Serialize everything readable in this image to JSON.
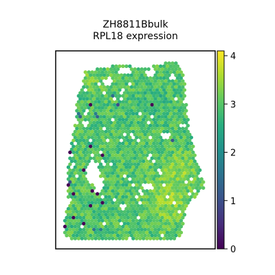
{
  "chart_data": {
    "type": "heatmap",
    "subtype": "spatial-hexbin",
    "title_line1": "ZH8811Bbulk",
    "title_line2": "RPL18 expression",
    "xlabel": "",
    "ylabel": "",
    "x_ticks_visible": false,
    "y_ticks_visible": false,
    "colormap": "viridis",
    "colorbar": {
      "range": [
        0,
        4.1
      ],
      "ticks": [
        0,
        1,
        2,
        3,
        4
      ],
      "tick_labels": [
        "0",
        "1",
        "2",
        "3",
        "4"
      ]
    },
    "value_distribution": {
      "typical_range": [
        2.4,
        3.7
      ],
      "dominant_value": 3.0,
      "outlier_low_value": 0.0
    }
  }
}
